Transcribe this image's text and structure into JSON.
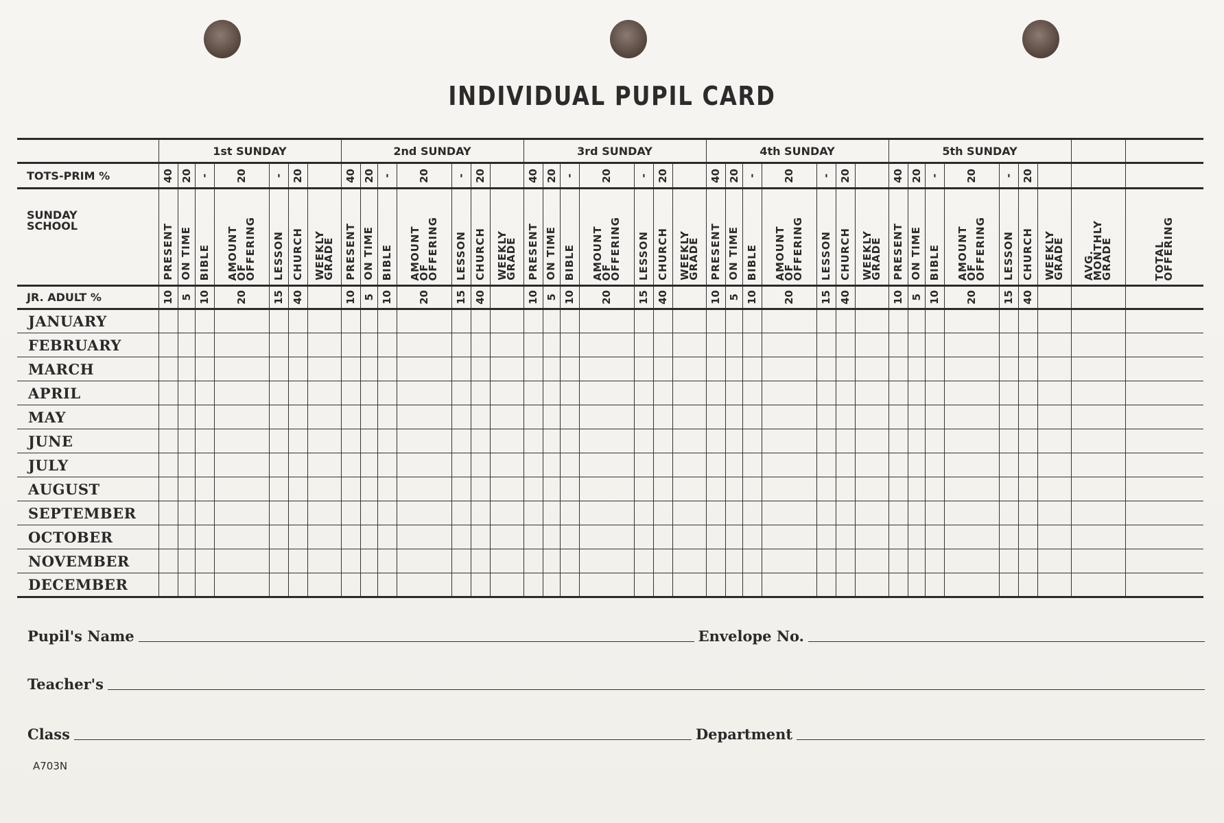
{
  "title": "INDIVIDUAL PUPIL CARD",
  "row_labels": {
    "tots": "TOTS-PRIM %",
    "sunday_school": "SUNDAY\nSCHOOL",
    "jr_adult": "JR. ADULT %"
  },
  "sundays": [
    "1st SUNDAY",
    "2nd SUNDAY",
    "3rd SUNDAY",
    "4th SUNDAY",
    "5th SUNDAY"
  ],
  "columns": [
    "PRESENT",
    "ON TIME",
    "BIBLE",
    "AMOUNT\nOF\nOFFERING",
    "LESSON",
    "CHURCH",
    "WEEKLY\nGRADE"
  ],
  "tots_values": [
    "40",
    "20",
    "-",
    "20",
    "-",
    "20",
    ""
  ],
  "jr_values": [
    "10",
    "5",
    "10",
    "20",
    "15",
    "40",
    ""
  ],
  "summary_columns": [
    "AVG.\nMONTHLY\nGRADE",
    "TOTAL\nOFFERING"
  ],
  "months": [
    "JANUARY",
    "FEBRUARY",
    "MARCH",
    "APRIL",
    "MAY",
    "JUNE",
    "JULY",
    "AUGUST",
    "SEPTEMBER",
    "OCTOBER",
    "NOVEMBER",
    "DECEMBER"
  ],
  "footer": {
    "pupil_name": "Pupil's Name",
    "envelope_no": "Envelope No.",
    "teacher": "Teacher's",
    "class": "Class",
    "department": "Department"
  },
  "form_code": "A703N"
}
